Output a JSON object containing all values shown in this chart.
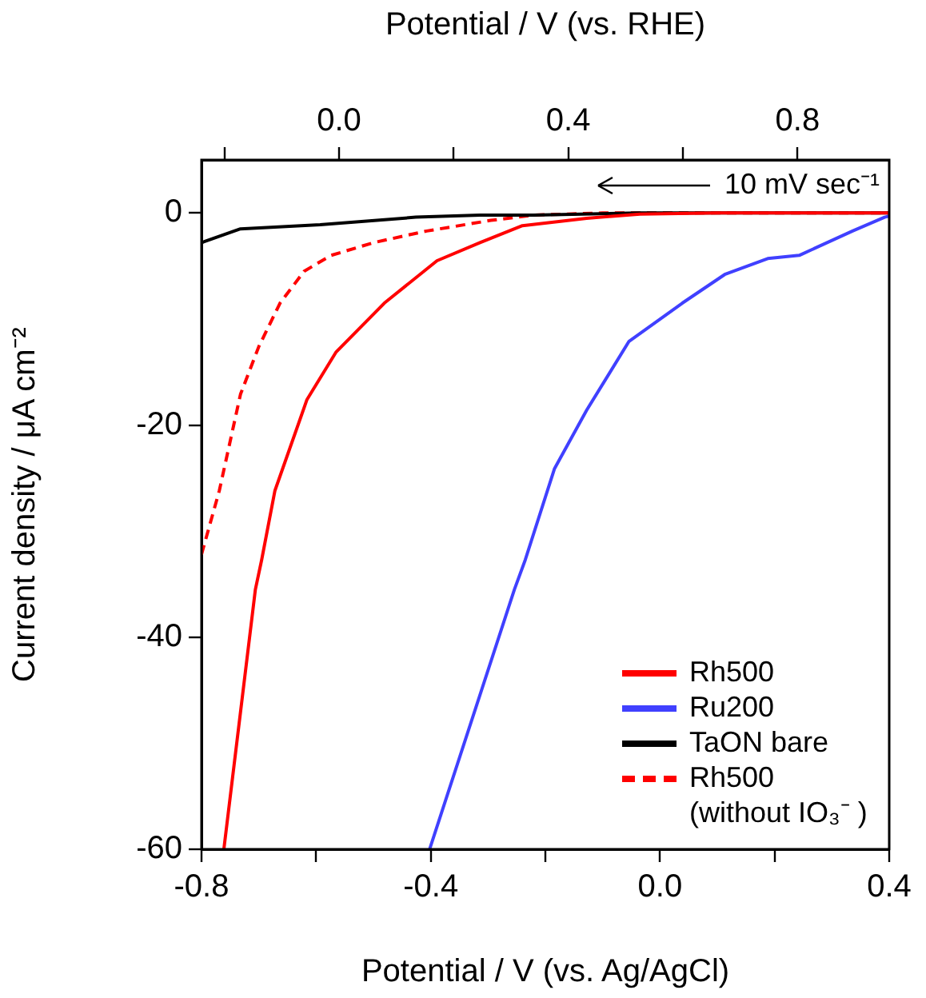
{
  "chart_data": {
    "type": "line",
    "xlabel": "Potential / V (vs. Ag/AgCl)",
    "x2label": "Potential / V (vs. RHE)",
    "ylabel": "Current density / μA cm⁻²",
    "xlim": [
      -0.8,
      0.4
    ],
    "xticks": [
      {
        "value": -0.8,
        "label": "-0.8"
      },
      {
        "value": -0.6,
        "label": null
      },
      {
        "value": -0.4,
        "label": "-0.4"
      },
      {
        "value": -0.2,
        "label": null
      },
      {
        "value": 0,
        "label": "0.0"
      },
      {
        "value": 0.2,
        "label": null
      },
      {
        "value": 0.4,
        "label": "0.4"
      }
    ],
    "x2lim": [
      -0.24,
      0.96
    ],
    "x2ticks": [
      {
        "value": -0.2,
        "label": null
      },
      {
        "value": 0,
        "label": "0.0"
      },
      {
        "value": 0.2,
        "label": null
      },
      {
        "value": 0.4,
        "label": "0.4"
      },
      {
        "value": 0.6,
        "label": null
      },
      {
        "value": 0.8,
        "label": "0.8"
      }
    ],
    "ylim": [
      -60,
      5
    ],
    "yticks": [
      0,
      -20,
      -40,
      -60
    ],
    "grid": false,
    "legend": "bottom right",
    "marker": "none",
    "annotations": [
      "10 mV sec⁻¹"
    ],
    "series": [
      {
        "name": "Rh500",
        "color": "#ff0000",
        "x": [
          -0.761,
          -0.706,
          -0.695,
          -0.672,
          -0.616,
          -0.565,
          -0.481,
          -0.389,
          -0.314,
          -0.24,
          -0.128,
          -0.035,
          0.1,
          0.25,
          0.4
        ],
        "values": [
          -60,
          -35.5,
          -32.7,
          -26.2,
          -17.6,
          -13.1,
          -8.5,
          -4.5,
          -2.8,
          -1.2,
          -0.5,
          -0.1,
          0,
          0,
          0
        ]
      },
      {
        "name": "Ru200",
        "color": "#4040ff",
        "x": [
          -0.402,
          -0.254,
          -0.235,
          -0.184,
          -0.128,
          -0.054,
          0.039,
          0.113,
          0.188,
          0.243,
          0.336,
          0.392,
          0.4
        ],
        "values": [
          -60,
          -35.5,
          -32.7,
          -24.1,
          -18.6,
          -12.1,
          -8.5,
          -5.8,
          -4.3,
          -4,
          -1.7,
          -0.4,
          -0.3
        ]
      },
      {
        "name": "TaON bare",
        "color": "#000000",
        "x": [
          -0.8,
          -0.732,
          -0.593,
          -0.426,
          -0.314,
          -0.221,
          -0.035,
          0.2,
          0.4
        ],
        "values": [
          -2.8,
          -1.5,
          -1.1,
          -0.4,
          -0.2,
          -0.2,
          0,
          0,
          0
        ]
      },
      {
        "name": "Rh500\n(without IO₃⁻ )",
        "color": "#ff0000",
        "line_style": "dashed",
        "x": [
          -0.8,
          -0.769,
          -0.732,
          -0.7,
          -0.663,
          -0.621,
          -0.574,
          -0.5,
          -0.407,
          -0.295,
          -0.221,
          -0.1,
          0.1,
          0.4
        ],
        "values": [
          -32.2,
          -26.2,
          -17.1,
          -12.6,
          -8.5,
          -5.5,
          -4,
          -2.8,
          -1.7,
          -0.7,
          -0.2,
          0,
          0,
          0
        ]
      }
    ]
  }
}
